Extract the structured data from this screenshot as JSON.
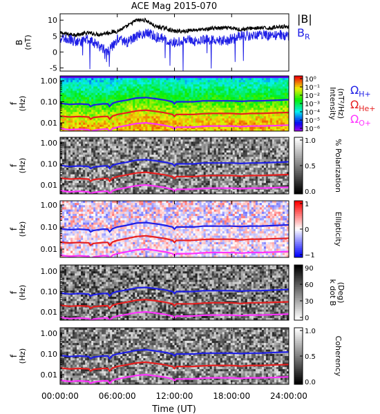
{
  "title": "ACE Mag 2015-070",
  "xlabel": "Time (UT)",
  "xticks": [
    "00:00:00",
    "06:00:00",
    "12:00:00",
    "18:00:00",
    "24:00:00"
  ],
  "colors": {
    "B_total": "#000000",
    "B_R": "#1f1fe6",
    "omega_H": "#1f1fe6",
    "omega_He": "#e61f1f",
    "omega_O": "#ff33ff"
  },
  "chart_data": [
    {
      "type": "line",
      "panel": "B",
      "ylabel_line1": "B",
      "ylabel_line2": "(nT)",
      "ylim": [
        -6,
        12
      ],
      "yticks": [
        "10",
        "5",
        "0",
        "-5"
      ],
      "x_hours": [
        0,
        1,
        2,
        3,
        4,
        5,
        6,
        7,
        8,
        9,
        10,
        11,
        12,
        13,
        14,
        15,
        16,
        17,
        18,
        19,
        20,
        21,
        22,
        23,
        24
      ],
      "series": [
        {
          "name": "|B|",
          "legend": "|B|",
          "color_key": "B_total",
          "values": [
            6,
            5.5,
            5.5,
            6,
            5.5,
            6,
            6.5,
            8,
            10,
            10,
            8,
            7.5,
            6.5,
            6.5,
            7,
            7,
            7.5,
            7.5,
            7.5,
            7,
            7.5,
            7.5,
            7.5,
            8,
            8
          ]
        },
        {
          "name": "B_R",
          "legend_main": "B",
          "legend_sub": "R",
          "color_key": "B_R",
          "values": [
            4,
            4,
            3,
            4,
            2,
            0,
            4,
            3,
            5,
            6,
            5,
            4,
            3,
            4,
            3.5,
            4,
            4,
            3.5,
            4,
            5,
            5,
            5.5,
            5,
            5.5,
            5
          ]
        }
      ]
    },
    {
      "type": "heatmap",
      "panel": "intensity",
      "colormap": "rainbow",
      "ylabel_line1": "f",
      "ylabel_line2": "(Hz)",
      "yticks": [
        "1.00",
        "0.10",
        "0.01"
      ],
      "colorbar_ticks": [
        "10⁰",
        "10⁻¹",
        "10⁻²",
        "10⁻³",
        "10⁻⁴",
        "10⁻⁵",
        "10⁻⁶"
      ],
      "colorbar_label": "Intensity",
      "colorbar_unit": "(nT²/Hz)",
      "legend": [
        {
          "main": "Ω",
          "sub": "H+",
          "color_key": "omega_H"
        },
        {
          "main": "Ω",
          "sub": "He+",
          "color_key": "omega_He"
        },
        {
          "main": "Ω",
          "sub": "O+",
          "color_key": "omega_O"
        }
      ]
    },
    {
      "type": "heatmap",
      "panel": "polarization",
      "colormap": "gray",
      "ylabel_line1": "f",
      "ylabel_line2": "(Hz)",
      "yticks": [
        "1.00",
        "0.10",
        "0.01"
      ],
      "colorbar_ticks": [
        "1.0",
        "0.5",
        "0.0"
      ],
      "colorbar_label": "% Polarization"
    },
    {
      "type": "heatmap",
      "panel": "ellipticity",
      "colormap": "bwr",
      "ylabel_line1": "f",
      "ylabel_line2": "(Hz)",
      "yticks": [
        "1.00",
        "0.10",
        "0.01"
      ],
      "colorbar_ticks": [
        "1",
        "0",
        "−1"
      ],
      "colorbar_label": "Ellipticity"
    },
    {
      "type": "heatmap",
      "panel": "kdotb",
      "colormap": "gray_inv",
      "ylabel_line1": "f",
      "ylabel_line2": "(Hz)",
      "yticks": [
        "1.00",
        "0.10",
        "0.01"
      ],
      "colorbar_ticks": [
        "90",
        "60",
        "30",
        "0"
      ],
      "colorbar_label": "k dot B",
      "colorbar_unit": "(Deg)"
    },
    {
      "type": "heatmap",
      "panel": "coherency",
      "colormap": "gray",
      "ylabel_line1": "f",
      "ylabel_line2": "(Hz)",
      "yticks": [
        "1.00",
        "0.10",
        "0.01"
      ],
      "colorbar_ticks": [
        "1.0",
        "0.5",
        "0.0"
      ],
      "colorbar_label": "Coherency"
    }
  ],
  "gyrofrequency_lines": {
    "x_hours": [
      0,
      1,
      2,
      3,
      3.2,
      3.5,
      4,
      4.5,
      5,
      5.2,
      5.5,
      6,
      7,
      8,
      9,
      10,
      11,
      11.8,
      12,
      12.2,
      13,
      14,
      15,
      16,
      17,
      18,
      19,
      20,
      21,
      22,
      23,
      24
    ],
    "omega_H_hz": [
      0.085,
      0.075,
      0.08,
      0.075,
      0.06,
      0.07,
      0.075,
      0.08,
      0.08,
      0.06,
      0.085,
      0.1,
      0.12,
      0.15,
      0.16,
      0.14,
      0.12,
      0.1,
      0.08,
      0.1,
      0.1,
      0.1,
      0.11,
      0.11,
      0.11,
      0.11,
      0.105,
      0.11,
      0.11,
      0.115,
      0.12,
      0.125
    ],
    "omega_He_hz": [
      0.021,
      0.019,
      0.02,
      0.019,
      0.015,
      0.018,
      0.019,
      0.02,
      0.02,
      0.015,
      0.021,
      0.025,
      0.03,
      0.037,
      0.04,
      0.035,
      0.03,
      0.025,
      0.02,
      0.025,
      0.025,
      0.025,
      0.027,
      0.028,
      0.028,
      0.028,
      0.026,
      0.028,
      0.028,
      0.029,
      0.03,
      0.031
    ],
    "omega_O_hz": [
      0.0053,
      0.0047,
      0.005,
      0.0047,
      0.0038,
      0.0044,
      0.0047,
      0.005,
      0.005,
      0.0038,
      0.0053,
      0.0062,
      0.0075,
      0.0092,
      0.01,
      0.0088,
      0.0075,
      0.0062,
      0.005,
      0.0062,
      0.0062,
      0.0063,
      0.0068,
      0.007,
      0.007,
      0.007,
      0.0066,
      0.007,
      0.007,
      0.0072,
      0.0075,
      0.0078
    ]
  }
}
